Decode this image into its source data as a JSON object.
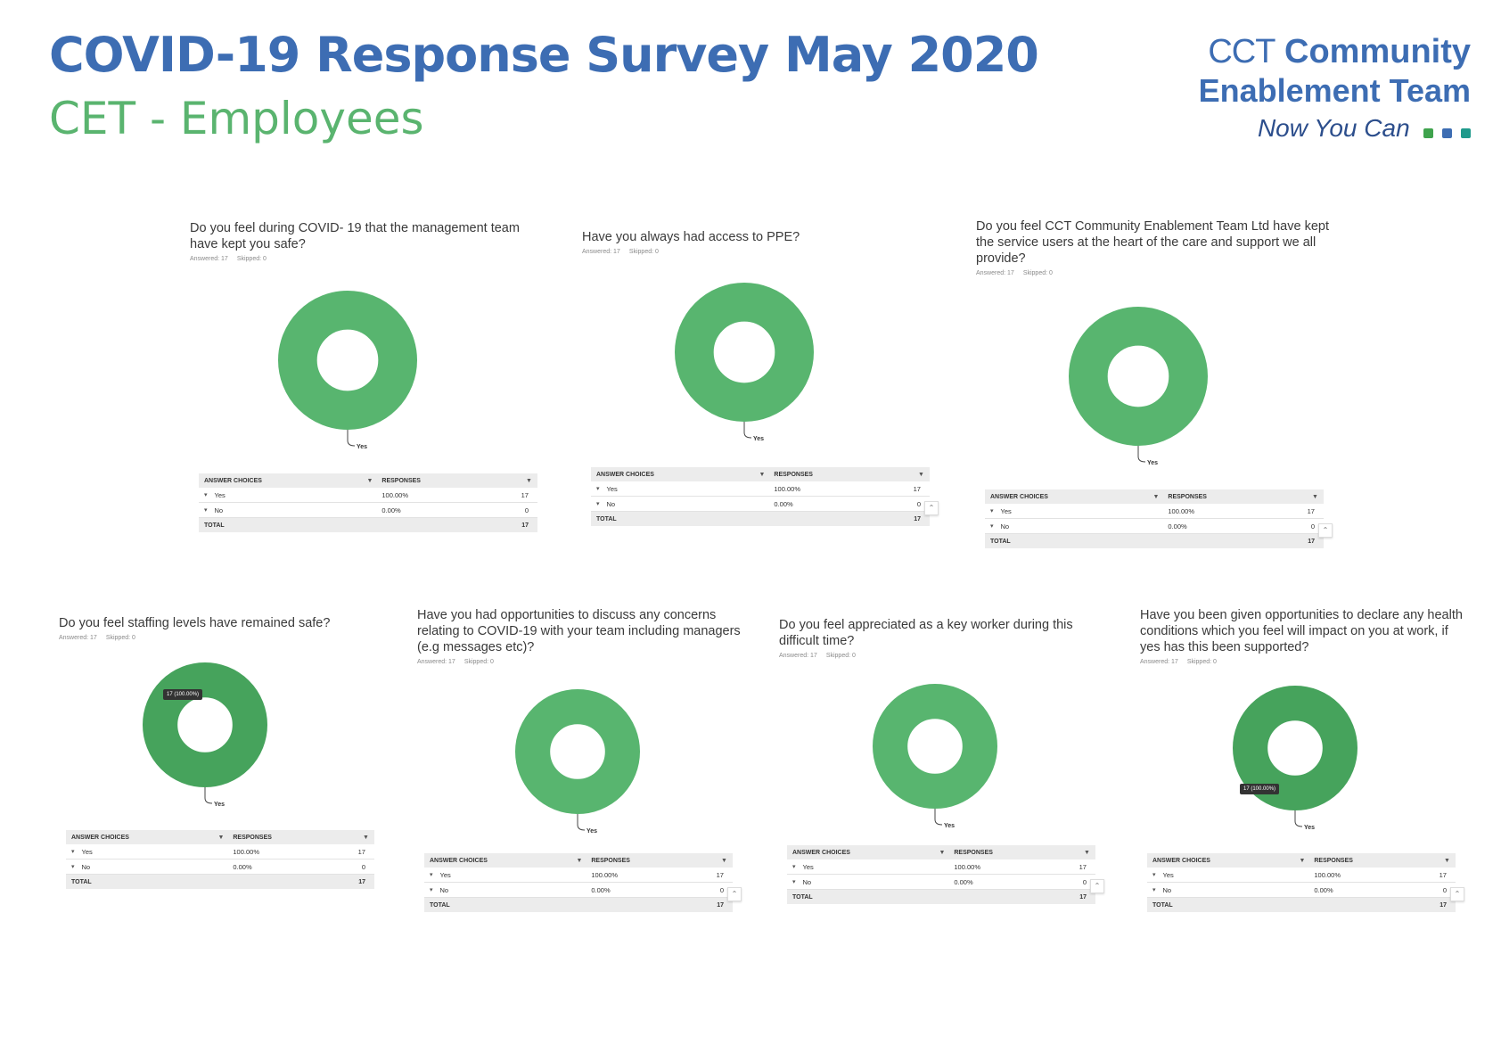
{
  "header": {
    "title": "COVID-19 Response Survey May 2020",
    "subtitle": "CET - Employees"
  },
  "logo": {
    "line1_thin": "CCT",
    "line1_bold": "Community",
    "line2": "Enablement Team",
    "line3": "Now You Can",
    "cube_colors": [
      "#3fa34d",
      "#3d6db3",
      "#1f9a8c"
    ]
  },
  "table_labels": {
    "answer_choices": "ANSWER CHOICES",
    "responses": "RESPONSES",
    "total": "TOTAL",
    "answered_prefix": "Answered:",
    "skipped_prefix": "Skipped:"
  },
  "colors": {
    "donut_green": "#58b56f",
    "donut_dark_green": "#46a35c"
  },
  "chart_data": [
    {
      "type": "pie",
      "question": "Do you feel during COVID- 19 that the management team have kept you safe?",
      "answered": "17",
      "skipped": "0",
      "slices": [
        {
          "label": "Yes",
          "value": 17,
          "percent": "100.00%"
        },
        {
          "label": "No",
          "value": 0,
          "percent": "0.00%"
        }
      ],
      "total": "17",
      "slice_label": "Yes",
      "tooltip": ""
    },
    {
      "type": "pie",
      "question": "Have you always had access to PPE?",
      "answered": "17",
      "skipped": "0",
      "slices": [
        {
          "label": "Yes",
          "value": 17,
          "percent": "100.00%"
        },
        {
          "label": "No",
          "value": 0,
          "percent": "0.00%"
        }
      ],
      "total": "17",
      "slice_label": "Yes",
      "tooltip": ""
    },
    {
      "type": "pie",
      "question": "Do you feel CCT Community Enablement Team Ltd have kept the service users at the heart of the care and support we all provide?",
      "answered": "17",
      "skipped": "0",
      "slices": [
        {
          "label": "Yes",
          "value": 17,
          "percent": "100.00%"
        },
        {
          "label": "No",
          "value": 0,
          "percent": "0.00%"
        }
      ],
      "total": "17",
      "slice_label": "Yes",
      "tooltip": ""
    },
    {
      "type": "pie",
      "question": "Do you feel staffing levels have remained safe?",
      "answered": "17",
      "skipped": "0",
      "slices": [
        {
          "label": "Yes",
          "value": 17,
          "percent": "100.00%"
        },
        {
          "label": "No",
          "value": 0,
          "percent": "0.00%"
        }
      ],
      "total": "17",
      "slice_label": "Yes",
      "tooltip": "17 (100.00%)"
    },
    {
      "type": "pie",
      "question": "Have you had opportunities to discuss any concerns relating to COVID-19 with your team including managers (e.g messages etc)?",
      "answered": "17",
      "skipped": "0",
      "slices": [
        {
          "label": "Yes",
          "value": 17,
          "percent": "100.00%"
        },
        {
          "label": "No",
          "value": 0,
          "percent": "0.00%"
        }
      ],
      "total": "17",
      "slice_label": "Yes",
      "tooltip": ""
    },
    {
      "type": "pie",
      "question": "Do you feel appreciated as a key worker during this difficult time?",
      "answered": "17",
      "skipped": "0",
      "slices": [
        {
          "label": "Yes",
          "value": 17,
          "percent": "100.00%"
        },
        {
          "label": "No",
          "value": 0,
          "percent": "0.00%"
        }
      ],
      "total": "17",
      "slice_label": "Yes",
      "tooltip": ""
    },
    {
      "type": "pie",
      "question": "Have you been given opportunities to declare any health conditions which you feel will impact on you at work, if yes has this been supported?",
      "answered": "17",
      "skipped": "0",
      "slices": [
        {
          "label": "Yes",
          "value": 17,
          "percent": "100.00%"
        },
        {
          "label": "No",
          "value": 0,
          "percent": "0.00%"
        }
      ],
      "total": "17",
      "slice_label": "Yes",
      "tooltip": "17 (100.00%)"
    }
  ]
}
